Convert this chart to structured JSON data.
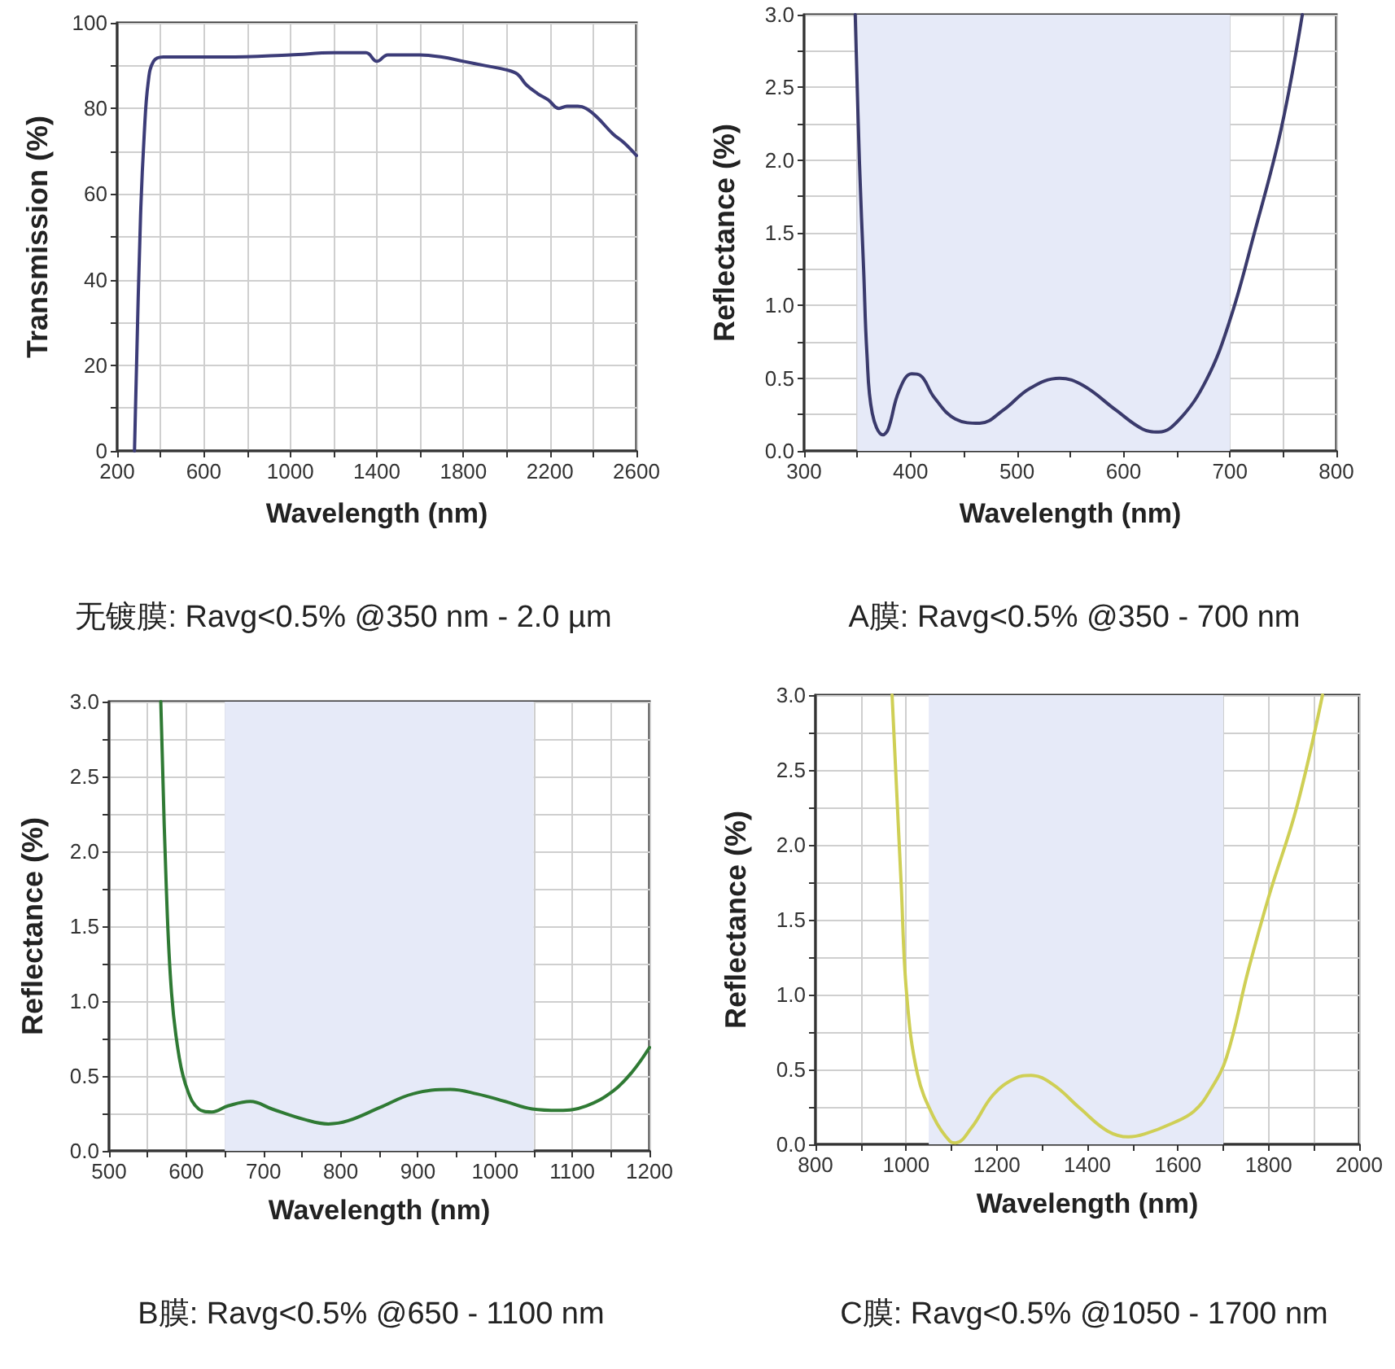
{
  "chart_data": [
    {
      "type": "line",
      "title": "无镀膜: Ravg<0.5% @350 nm - 2.0 µm",
      "xlabel": "Wavelength (nm)",
      "ylabel": "Transmission (%)",
      "grid": true,
      "x": [
        280,
        288,
        308,
        325,
        343,
        368,
        413,
        500,
        700,
        1000,
        1200,
        1350,
        1400,
        1450,
        1500,
        1600,
        1700,
        1800,
        1900,
        2000,
        2050,
        2091,
        2142,
        2192,
        2242,
        2279,
        2329,
        2367,
        2417,
        2492,
        2542,
        2600
      ],
      "series": [
        {
          "color": "#3c3c78",
          "values": [
            0,
            17,
            55,
            74,
            86,
            91,
            92,
            92,
            92,
            92.5,
            93,
            93,
            91,
            92.5,
            92.5,
            92.5,
            92,
            91,
            90,
            89,
            88,
            85.5,
            83.5,
            82,
            80,
            80.5,
            80.5,
            80,
            78,
            74,
            72,
            69
          ]
        }
      ],
      "xlim": [
        200,
        2600
      ],
      "ylim": [
        0,
        100
      ],
      "xticks": [
        200,
        {
          "value": 400,
          "label": null
        },
        600,
        {
          "value": 800,
          "label": null
        },
        1000,
        {
          "value": 1200,
          "label": null
        },
        1400,
        {
          "value": 1600,
          "label": null
        },
        1800,
        {
          "value": 2000,
          "label": null
        },
        2200,
        {
          "value": 2400,
          "label": null
        },
        2600
      ],
      "yticks": [
        0,
        {
          "value": 10,
          "label": null
        },
        20,
        {
          "value": 30,
          "label": null
        },
        40,
        {
          "value": 50,
          "label": null
        },
        60,
        {
          "value": 70,
          "label": null
        },
        80,
        {
          "value": 90,
          "label": null
        },
        100
      ]
    },
    {
      "type": "line",
      "title": "A膜: Ravg<0.5% @350 - 700 nm",
      "xlabel": "Wavelength (nm)",
      "ylabel": "Reflectance (%)",
      "grid": true,
      "x": [
        348,
        352,
        356,
        359,
        364,
        374,
        379,
        389,
        401,
        409,
        422,
        442,
        465,
        487,
        512,
        540,
        562,
        593,
        618,
        633,
        653,
        678,
        700,
        723,
        748,
        768
      ],
      "series": [
        {
          "color": "#3a3a6c",
          "values": [
            3,
            1.98,
            1.23,
            0.67,
            0.26,
            0.11,
            0.15,
            0.41,
            0.53,
            0.52,
            0.37,
            0.22,
            0.19,
            0.28,
            0.43,
            0.5,
            0.45,
            0.28,
            0.15,
            0.13,
            0.22,
            0.49,
            0.9,
            1.5,
            2.21,
            3
          ]
        }
      ],
      "bands": [
        {
          "axis": "x",
          "from": 350,
          "to": 700,
          "color": "#e6eaf8"
        }
      ],
      "xlim": [
        300,
        800
      ],
      "ylim": [
        0,
        3
      ],
      "xticks": [
        300,
        {
          "value": 350,
          "label": null
        },
        400,
        {
          "value": 450,
          "label": null
        },
        500,
        {
          "value": 550,
          "label": null
        },
        600,
        {
          "value": 650,
          "label": null
        },
        700,
        {
          "value": 750,
          "label": null
        },
        800
      ],
      "yticks": [
        {
          "value": 0,
          "label": "0.0"
        },
        {
          "value": 0.25,
          "label": null
        },
        0.5,
        {
          "value": 0.75,
          "label": null
        },
        {
          "value": 1,
          "label": "1.0"
        },
        {
          "value": 1.25,
          "label": null
        },
        1.5,
        {
          "value": 1.75,
          "label": null
        },
        {
          "value": 2,
          "label": "2.0"
        },
        {
          "value": 2.25,
          "label": null
        },
        2.5,
        {
          "value": 2.75,
          "label": null
        },
        {
          "value": 3,
          "label": "3.0"
        }
      ]
    },
    {
      "type": "line",
      "title": "B膜: Ravg<0.5% @650 - 1100 nm",
      "xlabel": "Wavelength (nm)",
      "ylabel": "Reflectance (%)",
      "grid": true,
      "x": [
        567,
        574,
        581,
        591,
        602,
        616,
        633,
        654,
        683,
        711,
        753,
        784,
        809,
        851,
        893,
        942,
        977,
        1013,
        1048,
        1083,
        1118,
        1153,
        1178,
        1200
      ],
      "series": [
        {
          "color": "#2f7a34",
          "values": [
            3,
            1.78,
            1.05,
            0.62,
            0.4,
            0.28,
            0.26,
            0.3,
            0.33,
            0.28,
            0.21,
            0.18,
            0.2,
            0.29,
            0.38,
            0.41,
            0.38,
            0.33,
            0.28,
            0.27,
            0.3,
            0.4,
            0.53,
            0.69
          ]
        }
      ],
      "bands": [
        {
          "axis": "x",
          "from": 650,
          "to": 1050,
          "color": "#e6eaf8"
        }
      ],
      "xlim": [
        500,
        1200
      ],
      "ylim": [
        0,
        3
      ],
      "xticks": [
        500,
        {
          "value": 550,
          "label": null
        },
        600,
        {
          "value": 650,
          "label": null
        },
        700,
        {
          "value": 750,
          "label": null
        },
        800,
        {
          "value": 850,
          "label": null
        },
        900,
        {
          "value": 950,
          "label": null
        },
        1000,
        {
          "value": 1050,
          "label": null
        },
        1100,
        {
          "value": 1150,
          "label": null
        },
        1200
      ],
      "yticks": [
        {
          "value": 0,
          "label": "0.0"
        },
        {
          "value": 0.25,
          "label": null
        },
        0.5,
        {
          "value": 0.75,
          "label": null
        },
        {
          "value": 1,
          "label": "1.0"
        },
        {
          "value": 1.25,
          "label": null
        },
        1.5,
        {
          "value": 1.75,
          "label": null
        },
        {
          "value": 2,
          "label": "2.0"
        },
        {
          "value": 2.25,
          "label": null
        },
        2.5,
        {
          "value": 2.75,
          "label": null
        },
        {
          "value": 3,
          "label": "3.0"
        }
      ]
    },
    {
      "type": "line",
      "title": "C膜: Ravg<0.5% @1050 - 1700 nm",
      "xlabel": "Wavelength (nm)",
      "ylabel": "Reflectance (%)",
      "grid": true,
      "x": [
        969,
        989,
        1001,
        1025,
        1061,
        1097,
        1109,
        1144,
        1192,
        1240,
        1276,
        1324,
        1384,
        1444,
        1491,
        1527,
        1587,
        1635,
        1671,
        1707,
        1755,
        1802,
        1862,
        1919
      ],
      "series": [
        {
          "color": "#cfcf55",
          "values": [
            3,
            1.74,
            1.01,
            0.47,
            0.18,
            0.02,
            0.01,
            0.11,
            0.33,
            0.44,
            0.46,
            0.4,
            0.24,
            0.09,
            0.05,
            0.07,
            0.14,
            0.22,
            0.36,
            0.58,
            1.16,
            1.67,
            2.25,
            3
          ]
        }
      ],
      "bands": [
        {
          "axis": "x",
          "from": 1050,
          "to": 1700,
          "color": "#e6eaf8"
        }
      ],
      "xlim": [
        800,
        2000
      ],
      "ylim": [
        0,
        3
      ],
      "xticks": [
        800,
        {
          "value": 900,
          "label": null
        },
        1000,
        {
          "value": 1100,
          "label": null
        },
        1200,
        {
          "value": 1300,
          "label": null
        },
        1400,
        {
          "value": 1500,
          "label": null
        },
        1600,
        {
          "value": 1700,
          "label": null
        },
        1800,
        {
          "value": 1900,
          "label": null
        },
        2000
      ],
      "yticks": [
        {
          "value": 0,
          "label": "0.0"
        },
        {
          "value": 0.25,
          "label": null
        },
        0.5,
        {
          "value": 0.75,
          "label": null
        },
        {
          "value": 1,
          "label": "1.0"
        },
        {
          "value": 1.25,
          "label": null
        },
        1.5,
        {
          "value": 1.75,
          "label": null
        },
        {
          "value": 2,
          "label": "2.0"
        },
        {
          "value": 2.25,
          "label": null
        },
        2.5,
        {
          "value": 2.75,
          "label": null
        },
        {
          "value": 3,
          "label": "3.0"
        }
      ]
    }
  ]
}
